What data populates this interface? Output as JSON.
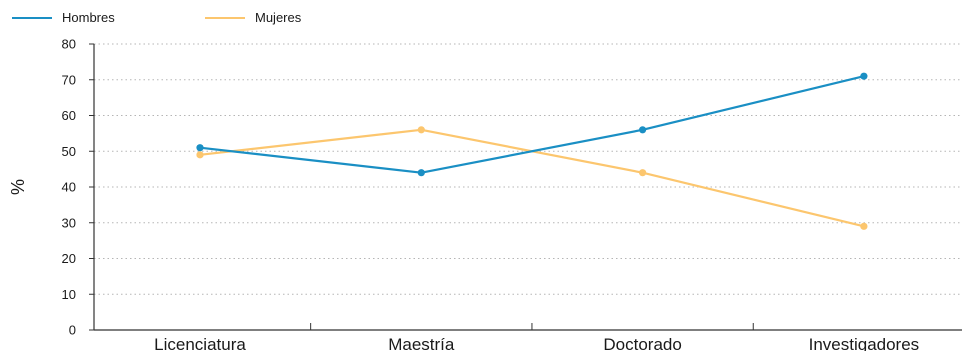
{
  "chart_data": {
    "type": "line",
    "categories": [
      "Licenciatura",
      "Maestría",
      "Doctorado",
      "Investigadores"
    ],
    "series": [
      {
        "name": "Hombres",
        "color": "#1a8fc4",
        "values": [
          51,
          44,
          56,
          71
        ]
      },
      {
        "name": "Mujeres",
        "color": "#fcc66e",
        "values": [
          49,
          56,
          44,
          29
        ]
      }
    ],
    "ylabel": "%",
    "xlabel": "",
    "ylim": [
      0,
      80
    ],
    "yticks": [
      0,
      10,
      20,
      30,
      40,
      50,
      60,
      70,
      80
    ],
    "grid": "horizontal-dotted",
    "legend_position": "top-left"
  }
}
